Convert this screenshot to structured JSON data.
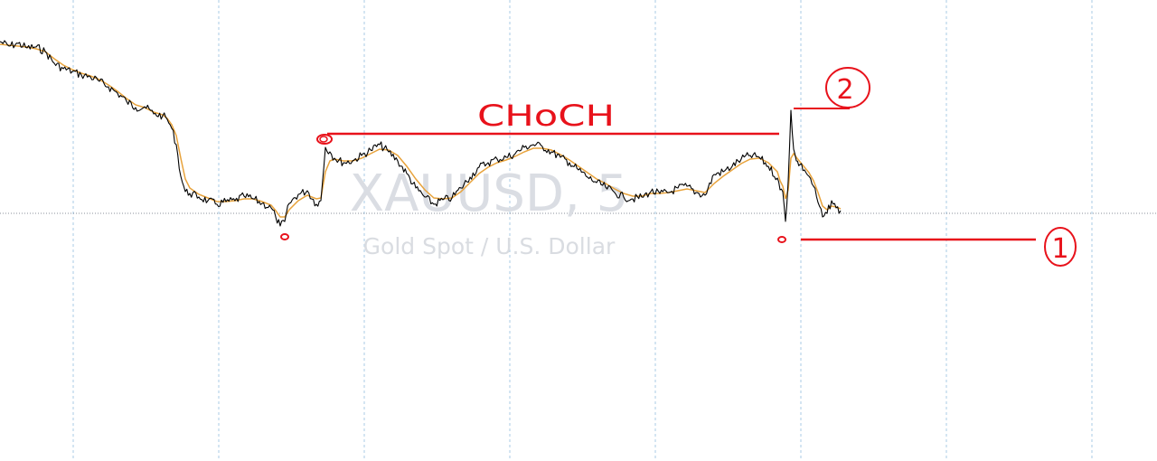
{
  "chart_data": {
    "type": "line",
    "symbol": "XAUUSD, 5",
    "description": "Gold Spot / U.S. Dollar",
    "title": "",
    "xlabel": "",
    "ylabel": "",
    "grid": {
      "vertical": true,
      "horizontal": false
    },
    "colors": {
      "price": "#000000",
      "moving_average": "#e8a33c",
      "annotation": "#e8121b",
      "grid": "#a9cbe6",
      "watermark": "#dadde3"
    },
    "x": [
      0,
      10,
      20,
      30,
      40,
      50,
      60,
      70,
      80,
      90,
      100,
      110,
      120,
      130,
      140,
      150,
      160,
      170,
      180,
      185,
      190,
      195,
      200,
      205,
      210,
      220,
      230,
      240,
      250,
      260,
      270,
      280,
      290,
      300,
      305,
      310,
      315,
      320,
      330,
      340,
      350,
      355,
      360,
      365,
      370,
      380,
      390,
      400,
      410,
      420,
      430,
      440,
      450,
      460,
      470,
      480,
      490,
      500,
      510,
      520,
      530,
      540,
      550,
      560,
      570,
      580,
      590,
      600,
      610,
      620,
      630,
      640,
      650,
      660,
      670,
      680,
      690,
      700,
      710,
      720,
      730,
      740,
      750,
      760,
      770,
      780,
      790,
      800,
      810,
      820,
      830,
      840,
      850,
      860,
      863,
      866,
      869,
      872,
      875,
      878,
      881,
      885,
      890,
      895,
      900,
      905,
      910,
      915,
      920,
      925,
      930
    ],
    "series": [
      {
        "values": [
          46,
          51,
          48,
          53,
          52,
          57,
          70,
          76,
          79,
          83,
          85,
          90,
          96,
          103,
          112,
          119,
          118,
          126,
          128,
          132,
          142,
          160,
          195,
          212,
          214,
          218,
          222,
          226,
          223,
          222,
          217,
          220,
          225,
          230,
          240,
          250,
          245,
          225,
          215,
          211,
          226,
          222,
          163,
          168,
          175,
          180,
          178,
          172,
          166,
          160,
          168,
          178,
          192,
          208,
          218,
          226,
          221,
          219,
          208,
          196,
          185,
          180,
          176,
          174,
          170,
          163,
          160,
          162,
          168,
          174,
          180,
          188,
          196,
          202,
          207,
          213,
          218,
          220,
          218,
          212,
          214,
          213,
          208,
          206,
          213,
          216,
          193,
          190,
          184,
          176,
          172,
          174,
          184,
          197,
          210,
          212,
          245,
          200,
          122,
          165,
          178,
          182,
          188,
          195,
          206,
          224,
          240,
          236,
          222,
          230,
          233
        ]
      },
      {
        "values": [
          49,
          50,
          51,
          52,
          54,
          57,
          65,
          72,
          77,
          81,
          84,
          88,
          94,
          101,
          109,
          116,
          119,
          124,
          127,
          131,
          138,
          150,
          175,
          198,
          208,
          215,
          219,
          223,
          223,
          222,
          220,
          220,
          223,
          227,
          233,
          240,
          240,
          232,
          222,
          216,
          220,
          219,
          190,
          178,
          176,
          178,
          178,
          175,
          170,
          165,
          166,
          172,
          184,
          198,
          210,
          219,
          220,
          219,
          212,
          202,
          192,
          185,
          180,
          177,
          173,
          168,
          164,
          164,
          166,
          171,
          177,
          184,
          191,
          198,
          203,
          209,
          214,
          217,
          217,
          214,
          214,
          213,
          211,
          209,
          211,
          213,
          203,
          195,
          188,
          181,
          176,
          175,
          180,
          190,
          200,
          206,
          220,
          210,
          175,
          170,
          174,
          179,
          185,
          191,
          200,
          213,
          228,
          232,
          228,
          229,
          231
        ]
      }
    ],
    "annotations": {
      "label_choch": "CHoCH",
      "label_1": "1",
      "label_2": "2"
    }
  }
}
